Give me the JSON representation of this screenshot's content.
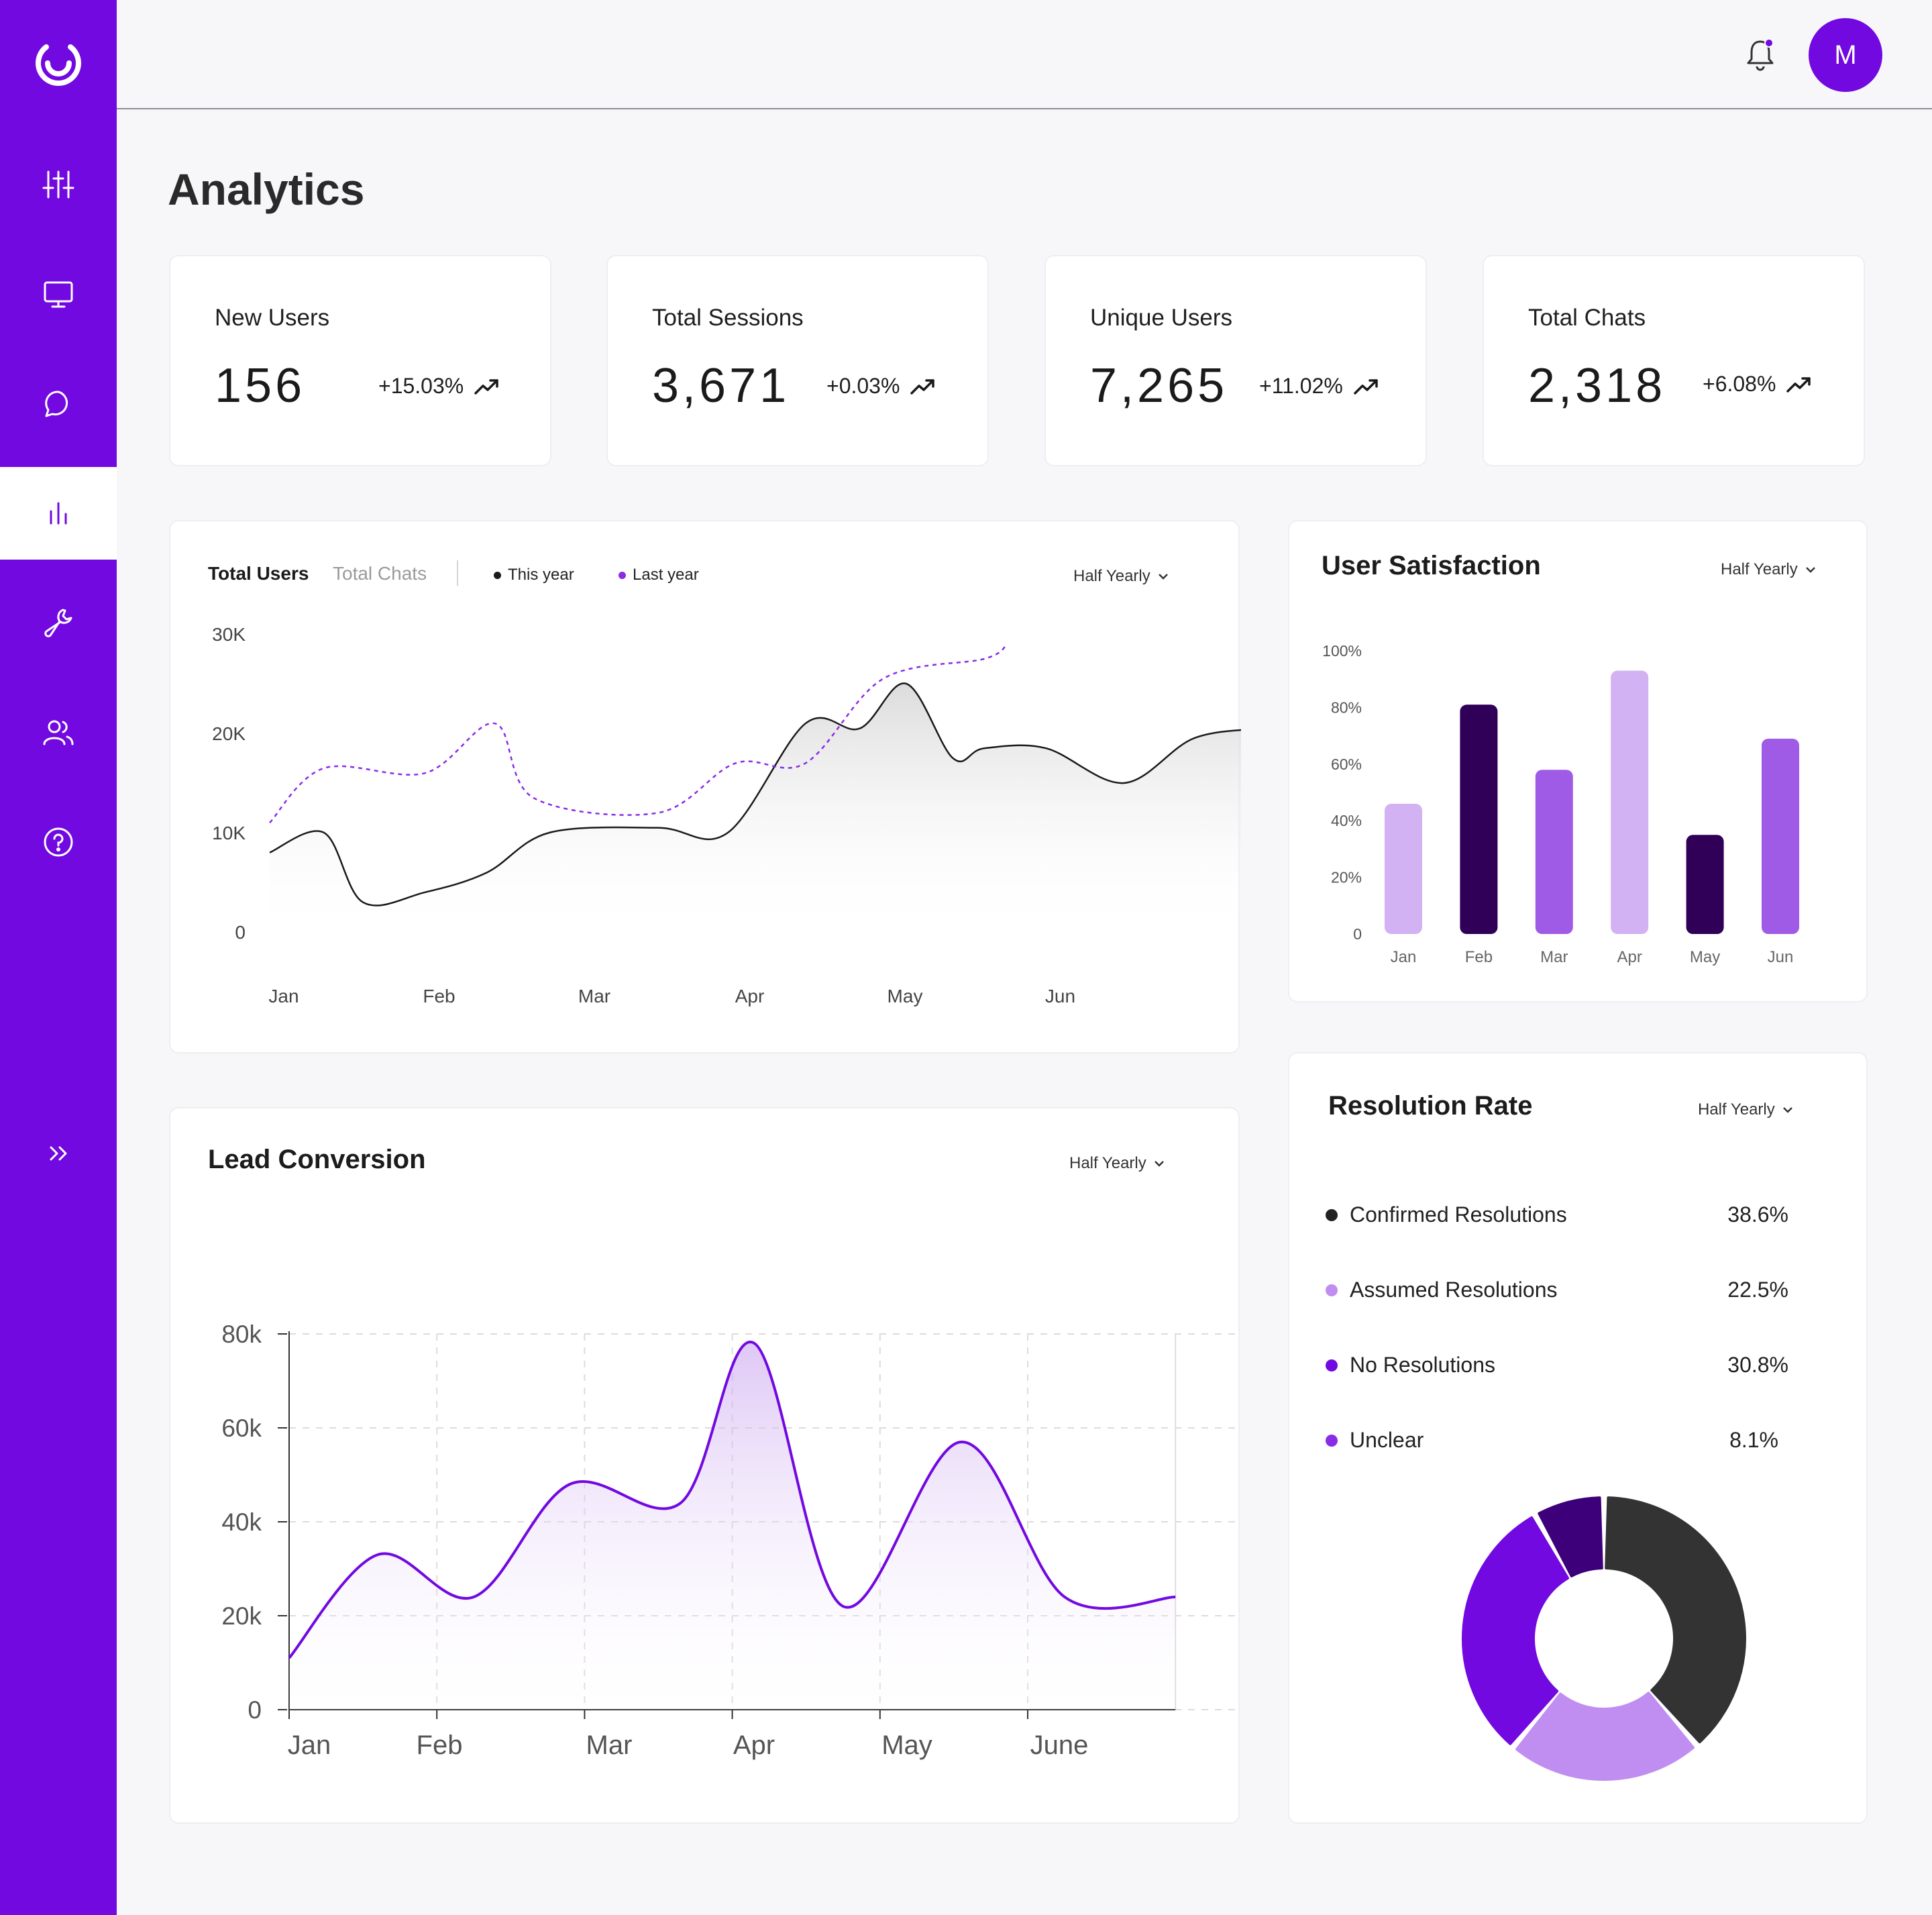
{
  "header": {
    "avatar_initial": "M",
    "title": "Analytics"
  },
  "sidebar": {
    "items": [
      {
        "icon": "sliders-icon"
      },
      {
        "icon": "monitor-icon"
      },
      {
        "icon": "chat-icon"
      },
      {
        "icon": "bar-chart-icon",
        "active": true
      },
      {
        "icon": "wrench-icon"
      },
      {
        "icon": "users-icon"
      },
      {
        "icon": "help-icon"
      },
      {
        "icon": "expand-icon"
      }
    ]
  },
  "stats": [
    {
      "label": "New Users",
      "value": "156",
      "change": "+15.03%"
    },
    {
      "label": "Total Sessions",
      "value": "3,671",
      "change": "+0.03%"
    },
    {
      "label": "Unique Users",
      "value": "7,265",
      "change": "+11.02%"
    },
    {
      "label": "Total Chats",
      "value": "2,318",
      "change": "+6.08%"
    }
  ],
  "users_panel": {
    "tab_active": "Total Users",
    "tab_inactive": "Total Chats",
    "legend_this_year": "This year",
    "legend_last_year": "Last year",
    "period": "Half Yearly"
  },
  "satisfaction_panel": {
    "title": "User Satisfaction",
    "period": "Half Yearly"
  },
  "lead_panel": {
    "title": "Lead Conversion",
    "period": "Half Yearly"
  },
  "resolution_panel": {
    "title": "Resolution Rate",
    "period": "Half Yearly",
    "items": [
      {
        "label": "Confirmed Resolutions",
        "value": "38.6%",
        "color": "#222222"
      },
      {
        "label": "Assumed Resolutions",
        "value": "22.5%",
        "color": "#c08ef0"
      },
      {
        "label": "No Resolutions",
        "value": "30.8%",
        "color": "#7209e0"
      },
      {
        "label": "Unclear",
        "value": "8.1%",
        "color": "#8a2be8"
      }
    ]
  },
  "chart_data": [
    {
      "type": "line",
      "categories": [
        "Jan",
        "Feb",
        "Mar",
        "Apr",
        "May",
        "Jun"
      ],
      "yticks": [
        "0",
        "10K",
        "20K",
        "30K"
      ],
      "ylim": [
        0,
        30000
      ],
      "series": [
        {
          "name": "This year",
          "color": "#1a1a1a",
          "x": [
            0.0,
            0.35,
            0.6,
            1.0,
            1.4,
            1.8,
            2.5,
            2.95,
            3.45,
            3.8,
            4.1,
            4.4,
            4.6,
            5.0,
            5.5,
            5.95,
            6.4
          ],
          "values": [
            8000,
            10000,
            3000,
            4000,
            6000,
            10000,
            10500,
            10000,
            21000,
            20500,
            25000,
            17500,
            18500,
            18500,
            15000,
            19500,
            20500
          ]
        },
        {
          "name": "Last year",
          "color": "#8a2be8",
          "dashed": true,
          "x": [
            0.0,
            0.35,
            1.0,
            1.45,
            1.7,
            2.5,
            3.0,
            3.45,
            3.95,
            4.6,
            4.75
          ],
          "values": [
            11000,
            16500,
            16000,
            21000,
            13500,
            12000,
            17000,
            17000,
            25500,
            27500,
            29000
          ]
        }
      ]
    },
    {
      "type": "bar",
      "categories": [
        "Jan",
        "Feb",
        "Mar",
        "Apr",
        "May",
        "Jun"
      ],
      "values": [
        46,
        81,
        58,
        93,
        35,
        69
      ],
      "colors": [
        "#d3b2f4",
        "#300058",
        "#a05be6",
        "#d3b2f4",
        "#300058",
        "#a05be6"
      ],
      "yticks": [
        "0",
        "20%",
        "40%",
        "60%",
        "80%",
        "100%"
      ],
      "ylim": [
        0,
        100
      ]
    },
    {
      "type": "area",
      "categories": [
        "Jan",
        "Feb",
        "Mar",
        "Apr",
        "May",
        "June"
      ],
      "x": [
        0,
        0.6,
        1.25,
        1.9,
        2.65,
        3.15,
        3.75,
        4.55,
        5.25,
        6.0
      ],
      "values": [
        11000,
        33000,
        24000,
        48000,
        44000,
        78000,
        22000,
        57000,
        24000,
        24000
      ],
      "yticks": [
        "0",
        "20k",
        "40k",
        "60k",
        "80k"
      ],
      "ylim": [
        0,
        80000
      ]
    },
    {
      "type": "pie",
      "labels": [
        "Confirmed Resolutions",
        "Assumed Resolutions",
        "No Resolutions",
        "Unclear"
      ],
      "values": [
        38.6,
        22.5,
        30.8,
        8.1
      ]
    }
  ]
}
